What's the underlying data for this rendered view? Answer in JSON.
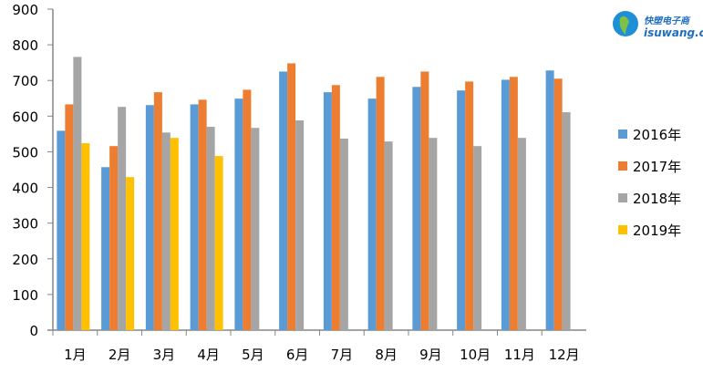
{
  "chart_data": {
    "type": "bar",
    "categories": [
      "1月",
      "2月",
      "3月",
      "4月",
      "5月",
      "6月",
      "7月",
      "8月",
      "9月",
      "10月",
      "11月",
      "12月"
    ],
    "series": [
      {
        "name": "2016年",
        "color": "#5b9bd5",
        "values": [
          559,
          457,
          631,
          633,
          649,
          725,
          667,
          649,
          682,
          672,
          702,
          728
        ]
      },
      {
        "name": "2017年",
        "color": "#ed7d31",
        "values": [
          633,
          516,
          667,
          646,
          674,
          748,
          687,
          710,
          725,
          697,
          710,
          705
        ]
      },
      {
        "name": "2018年",
        "color": "#a5a5a5",
        "values": [
          766,
          626,
          554,
          570,
          567,
          588,
          537,
          529,
          539,
          516,
          539,
          611
        ]
      },
      {
        "name": "2019年",
        "color": "#ffc000",
        "values": [
          524,
          429,
          539,
          488,
          null,
          null,
          null,
          null,
          null,
          null,
          null,
          null
        ]
      }
    ],
    "ylim": [
      0,
      900
    ],
    "yticks": [
      0,
      100,
      200,
      300,
      400,
      500,
      600,
      700,
      800,
      900
    ],
    "grid": false,
    "legend": "right"
  },
  "logo": {
    "text_cn": "快塑电子商",
    "text_en": "isuwang.cc"
  }
}
